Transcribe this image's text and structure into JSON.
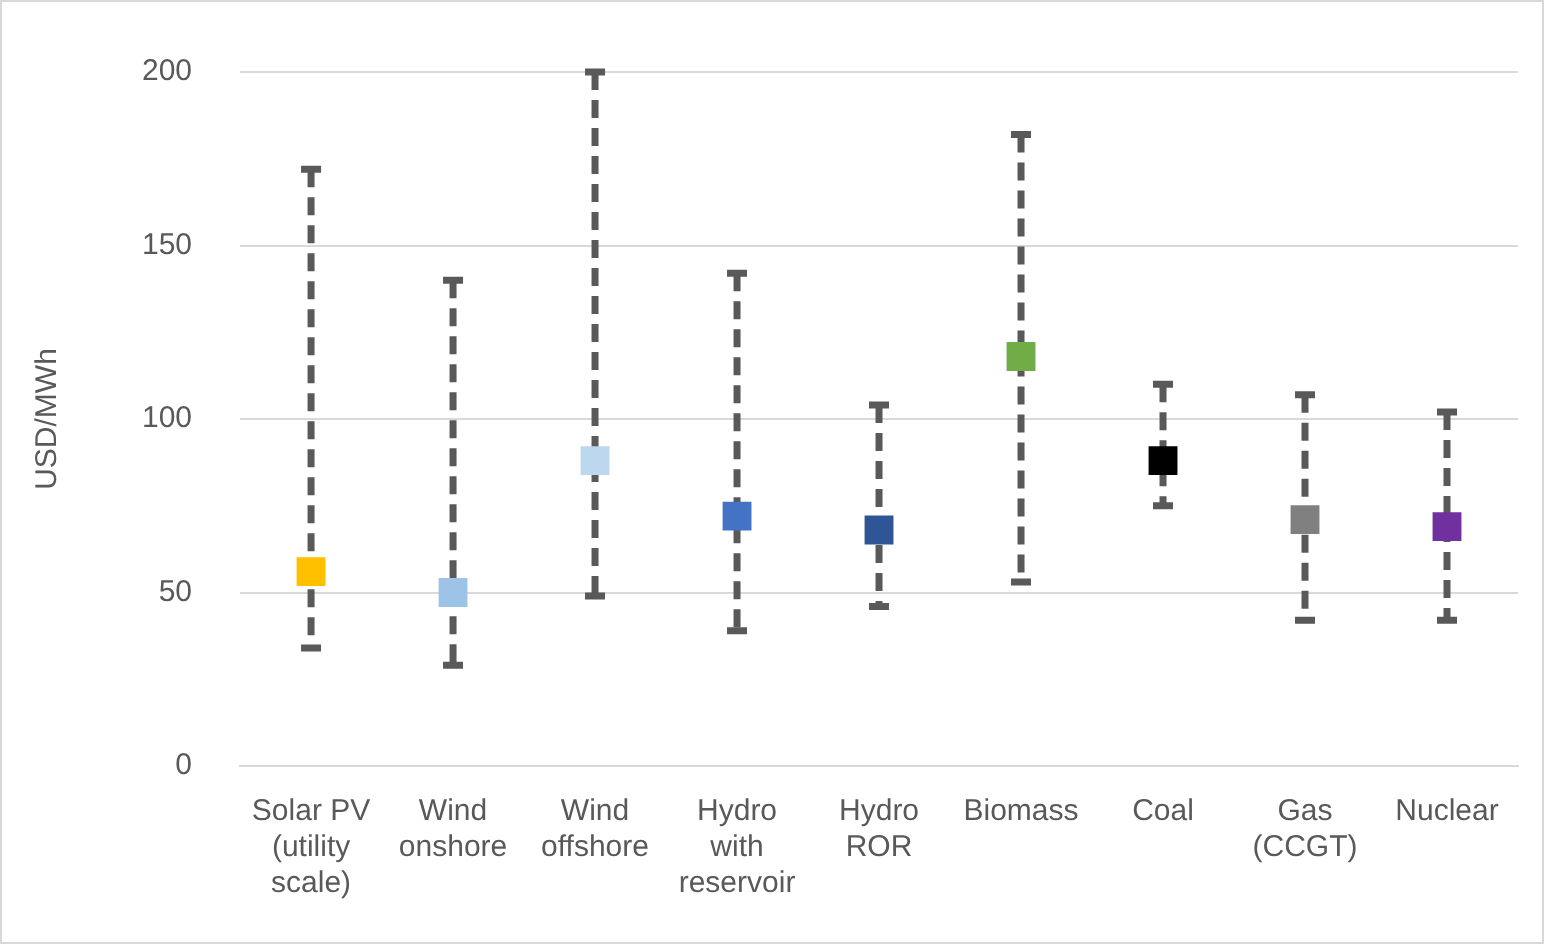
{
  "chart_data": {
    "type": "scatter",
    "ylabel": "USD/MWh",
    "categories": [
      "Solar PV (utility scale)",
      "Wind onshore",
      "Wind offshore",
      "Hydro with reservoir",
      "Hydro ROR",
      "Biomass",
      "Coal",
      "Gas (CCGT)",
      "Nuclear"
    ],
    "values": [
      56,
      50,
      88,
      72,
      68,
      118,
      88,
      71,
      69
    ],
    "colors": [
      "#ffc000",
      "#9dc3e6",
      "#bdd7ee",
      "#4472c4",
      "#2f5597",
      "#70ad47",
      "#000000",
      "#808080",
      "#7030a0"
    ],
    "errors": [
      [
        34,
        172
      ],
      [
        29,
        140
      ],
      [
        49,
        200
      ],
      [
        39,
        142
      ],
      [
        46,
        104
      ],
      [
        53,
        182
      ],
      [
        75,
        110
      ],
      [
        42,
        107
      ],
      [
        42,
        102
      ]
    ],
    "ylim": [
      0,
      200
    ],
    "yticks": [
      0,
      50,
      100,
      150,
      200
    ],
    "grid": "y",
    "marker": "square"
  }
}
